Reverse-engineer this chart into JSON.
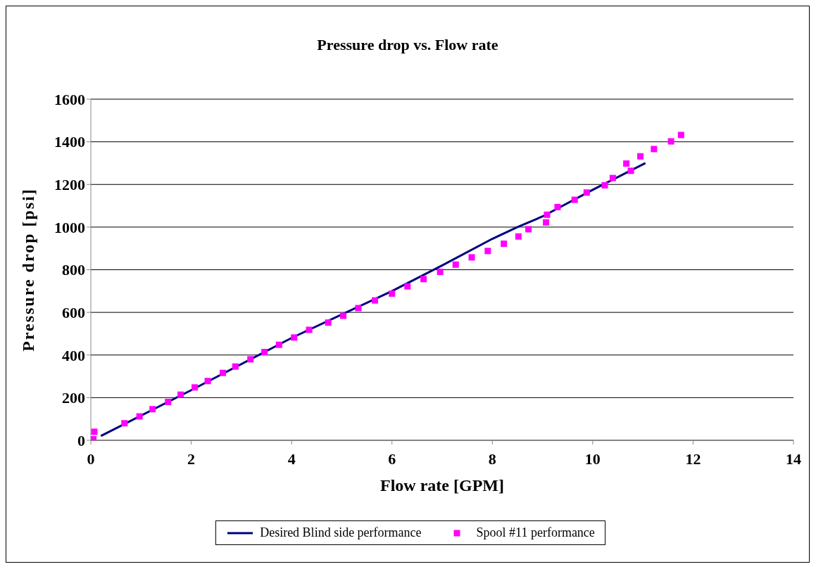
{
  "chart_data": {
    "type": "scatter",
    "title": "Pressure drop vs. Flow rate",
    "xlabel": "Flow rate [GPM]",
    "ylabel": "Pressure drop [psi]",
    "xlim": [
      0,
      14
    ],
    "xticks": [
      0,
      2,
      4,
      6,
      8,
      10,
      12,
      14
    ],
    "ylim": [
      0,
      1600
    ],
    "yticks": [
      0,
      200,
      400,
      600,
      800,
      1000,
      1200,
      1400,
      1600
    ],
    "grid": "y",
    "legend": "bottom",
    "series": [
      {
        "name": "Desired Blind side performance",
        "type": "line",
        "color": "#000080",
        "marker": "none",
        "line_style": "solid",
        "x": [
          0.2,
          2,
          4,
          5,
          6,
          7,
          8,
          8.5,
          9,
          10,
          11.05
        ],
        "values": [
          20,
          235,
          480,
          590,
          700,
          820,
          945,
          1000,
          1050,
          1175,
          1300
        ]
      },
      {
        "name": "Spool #11 performance",
        "color": "#ff00ff",
        "marker": "square",
        "x": [
          0.05,
          0.07,
          0.67,
          0.97,
          1.23,
          1.54,
          1.79,
          2.07,
          2.33,
          2.63,
          2.88,
          3.18,
          3.46,
          3.75,
          4.05,
          4.35,
          4.73,
          5.03,
          5.33,
          5.66,
          6.0,
          6.31,
          6.63,
          6.96,
          7.27,
          7.59,
          7.91,
          8.23,
          8.52,
          8.72,
          9.07,
          9.09,
          9.3,
          9.64,
          9.88,
          10.24,
          10.4,
          10.67,
          10.76,
          10.95,
          11.22,
          11.56,
          11.76
        ],
        "values": [
          5,
          40,
          80,
          112,
          146,
          180,
          214,
          248,
          278,
          316,
          346,
          380,
          414,
          448,
          482,
          518,
          552,
          584,
          620,
          656,
          688,
          722,
          756,
          790,
          824,
          858,
          888,
          922,
          956,
          990,
          1022,
          1058,
          1094,
          1128,
          1162,
          1196,
          1230,
          1298,
          1264,
          1332,
          1366,
          1402,
          1432
        ]
      }
    ]
  }
}
